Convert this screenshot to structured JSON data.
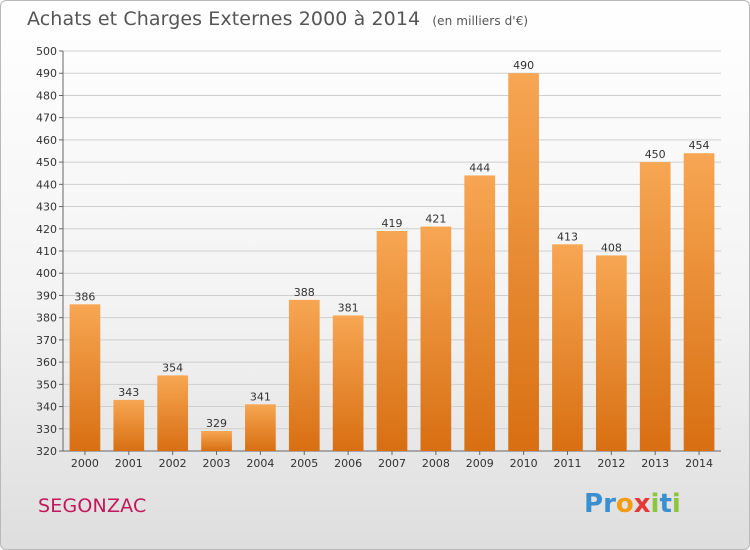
{
  "header": {
    "title": "Achats et Charges Externes 2000 à 2014",
    "subtitle": "(en milliers d'€)"
  },
  "footer": {
    "commune": "SEGONZAC",
    "logo_text": "Proxiti",
    "logo_letters": [
      {
        "ch": "P",
        "color": "#3a8fd0"
      },
      {
        "ch": "r",
        "color": "#3a8fd0"
      },
      {
        "ch": "o",
        "color": "#f39c12"
      },
      {
        "ch": "x",
        "color": "#e53935"
      },
      {
        "ch": "i",
        "color": "#8cc63f"
      },
      {
        "ch": "t",
        "color": "#3a8fd0"
      },
      {
        "ch": "i",
        "color": "#8cc63f"
      }
    ]
  },
  "colors": {
    "bar_top": "#f7a653",
    "bar_bottom": "#d86f12",
    "grid": "#cfcfcf",
    "axis": "#666666",
    "commune": "#c2185b"
  },
  "chart_data": {
    "type": "bar",
    "title": "Achats et Charges Externes 2000 à 2014",
    "subtitle": "(en milliers d'€)",
    "categories": [
      "2000",
      "2001",
      "2002",
      "2003",
      "2004",
      "2005",
      "2006",
      "2007",
      "2008",
      "2009",
      "2010",
      "2011",
      "2012",
      "2013",
      "2014"
    ],
    "values": [
      386,
      343,
      354,
      329,
      341,
      388,
      381,
      419,
      421,
      444,
      490,
      413,
      408,
      450,
      454
    ],
    "ylim": [
      320,
      500
    ],
    "ytick_step": 10,
    "grid": true,
    "legend": "none"
  }
}
